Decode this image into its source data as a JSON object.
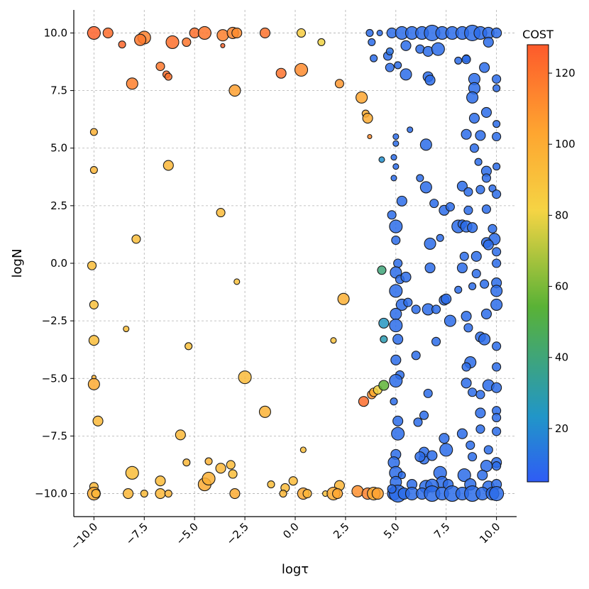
{
  "chart_data": {
    "type": "scatter",
    "title": "",
    "xlabel": "logτ",
    "ylabel": "logN",
    "xlim": [
      -11,
      11
    ],
    "ylim": [
      -11,
      11
    ],
    "x_ticks": [
      -10.0,
      -7.5,
      -5.0,
      -2.5,
      0.0,
      2.5,
      5.0,
      7.5,
      10.0
    ],
    "x_tick_labels": [
      "−10.0",
      "−7.5",
      "−5.0",
      "−2.5",
      "0.0",
      "2.5",
      "5.0",
      "7.5",
      "10.0"
    ],
    "y_ticks": [
      -10.0,
      -7.5,
      -5.0,
      -2.5,
      0.0,
      2.5,
      5.0,
      7.5,
      10.0
    ],
    "y_tick_labels": [
      "−10.0",
      "−7.5",
      "−5.0",
      "−2.5",
      "0.0",
      "2.5",
      "5.0",
      "7.5",
      "10.0"
    ],
    "grid": true,
    "colorbar": {
      "label": "COST",
      "range": [
        5,
        128
      ],
      "ticks": [
        20,
        40,
        60,
        80,
        100,
        120
      ],
      "colors": [
        "#2f5cf5",
        "#2196c8",
        "#59b236",
        "#f5d444",
        "#fea530",
        "#fd5a2b"
      ]
    },
    "points": [
      [
        -10,
        10,
        125,
        9
      ],
      [
        -9.3,
        10,
        122,
        7
      ],
      [
        -8.6,
        9.5,
        124,
        5
      ],
      [
        -7.5,
        9.8,
        115,
        9
      ],
      [
        -7.7,
        9.7,
        118,
        8
      ],
      [
        -6.1,
        9.6,
        121,
        9
      ],
      [
        -5.4,
        9.6,
        119,
        6
      ],
      [
        -5,
        10,
        121,
        7
      ],
      [
        -4.5,
        10,
        119,
        9
      ],
      [
        -3.6,
        9.9,
        116,
        8
      ],
      [
        -3.1,
        10,
        114,
        8
      ],
      [
        -2.9,
        10,
        112,
        7
      ],
      [
        -1.5,
        10,
        120,
        7
      ],
      [
        0.3,
        10,
        85,
        6
      ],
      [
        1.3,
        9.6,
        80,
        5
      ],
      [
        -3.6,
        9.45,
        125,
        3
      ],
      [
        -6.7,
        8.55,
        118,
        6
      ],
      [
        -6.4,
        8.2,
        122,
        5
      ],
      [
        -6.3,
        8.1,
        120,
        5
      ],
      [
        -8.1,
        7.8,
        116,
        8
      ],
      [
        -0.7,
        8.25,
        120,
        7
      ],
      [
        0.3,
        8.4,
        112,
        9
      ],
      [
        2.2,
        7.8,
        108,
        6
      ],
      [
        -3,
        7.5,
        105,
        8
      ],
      [
        3.3,
        7.2,
        103,
        8
      ],
      [
        3.5,
        6.5,
        100,
        5
      ],
      [
        3.6,
        6.3,
        100,
        7
      ],
      [
        3.7,
        5.5,
        112,
        3
      ],
      [
        -10,
        5.7,
        98,
        5
      ],
      [
        -10,
        4.05,
        96,
        5
      ],
      [
        -6.3,
        4.25,
        95,
        7
      ],
      [
        -3.7,
        2.2,
        93,
        6
      ],
      [
        -7.9,
        1.05,
        92,
        6
      ],
      [
        -10.1,
        -0.1,
        92,
        6
      ],
      [
        -2.9,
        -0.8,
        90,
        4
      ],
      [
        -10,
        -1.8,
        90,
        6
      ],
      [
        2.4,
        -1.55,
        98,
        8
      ],
      [
        -8.4,
        -2.85,
        92,
        4
      ],
      [
        -10,
        -3.35,
        92,
        7
      ],
      [
        1.9,
        -3.35,
        90,
        4
      ],
      [
        -5.3,
        -3.6,
        90,
        5
      ],
      [
        -10,
        -4.95,
        96,
        3
      ],
      [
        -10,
        -5.25,
        101,
        8
      ],
      [
        -2.5,
        -4.95,
        93,
        9
      ],
      [
        -9.8,
        -6.85,
        94,
        7
      ],
      [
        -1.5,
        -6.45,
        97,
        8
      ],
      [
        -5.7,
        -7.45,
        94,
        7
      ],
      [
        0.4,
        -8.1,
        92,
        4
      ],
      [
        -5.4,
        -8.65,
        95,
        5
      ],
      [
        -4.3,
        -8.6,
        97,
        5
      ],
      [
        -3.7,
        -8.9,
        95,
        7
      ],
      [
        -3.1,
        -9.15,
        92,
        6
      ],
      [
        -3.2,
        -8.75,
        93,
        6
      ],
      [
        -8.1,
        -9.1,
        92,
        9
      ],
      [
        -6.7,
        -9.45,
        93,
        7
      ],
      [
        -4.5,
        -9.6,
        101,
        9
      ],
      [
        -4.3,
        -9.35,
        98,
        9
      ],
      [
        -1.2,
        -9.6,
        92,
        5
      ],
      [
        -0.5,
        -9.75,
        93,
        6
      ],
      [
        -0.1,
        -9.45,
        93,
        6
      ],
      [
        2.2,
        -9.65,
        96,
        7
      ],
      [
        -10,
        -9.7,
        95,
        6
      ],
      [
        -10,
        -10,
        100,
        9
      ],
      [
        -9.9,
        -10,
        96,
        6
      ],
      [
        -8.3,
        -10,
        95,
        7
      ],
      [
        -7.5,
        -10,
        93,
        5
      ],
      [
        -6.7,
        -10,
        95,
        7
      ],
      [
        -6.3,
        -10,
        96,
        5
      ],
      [
        -3,
        -10,
        100,
        7
      ],
      [
        -0.6,
        -10,
        95,
        5
      ],
      [
        0.4,
        -10,
        102,
        8
      ],
      [
        0.6,
        -10,
        96,
        6
      ],
      [
        1.5,
        -10,
        90,
        4
      ],
      [
        1.9,
        -10,
        100,
        9
      ],
      [
        2.1,
        -10,
        103,
        7
      ],
      [
        3.1,
        -9.9,
        110,
        8
      ],
      [
        3.6,
        -10,
        115,
        8
      ],
      [
        3.9,
        -10,
        100,
        9
      ],
      [
        4.1,
        -10,
        105,
        8
      ],
      [
        3.4,
        -6,
        122,
        7
      ],
      [
        3.8,
        -5.7,
        110,
        6
      ],
      [
        3.9,
        -5.6,
        100,
        6
      ],
      [
        4.1,
        -5.5,
        80,
        6
      ],
      [
        4.4,
        -5.3,
        55,
        7
      ],
      [
        4.3,
        -0.3,
        40,
        6
      ],
      [
        4.4,
        -2.6,
        25,
        7
      ],
      [
        4.4,
        -3.3,
        28,
        5
      ],
      [
        4.3,
        4.5,
        22,
        4
      ],
      [
        3.7,
        10,
        10,
        5
      ],
      [
        4.2,
        10,
        10,
        4
      ],
      [
        3.8,
        9.6,
        10,
        5
      ],
      [
        3.9,
        8.9,
        10,
        5
      ],
      [
        4.6,
        9,
        10,
        6
      ],
      [
        4.7,
        9.2,
        12,
        5
      ],
      [
        4.7,
        8.5,
        10,
        6
      ],
      [
        5.5,
        8.2,
        10,
        8
      ],
      [
        6.6,
        8.1,
        10,
        7
      ],
      [
        6.7,
        7.95,
        10,
        7
      ],
      [
        5.1,
        8.6,
        10,
        5
      ],
      [
        5,
        5.5,
        10,
        4
      ],
      [
        5,
        5.2,
        10,
        4
      ],
      [
        5.7,
        5.8,
        10,
        4
      ],
      [
        6.5,
        5.15,
        10,
        8
      ],
      [
        4.9,
        4.6,
        10,
        4
      ],
      [
        5,
        4.2,
        10,
        4
      ],
      [
        4.9,
        3.7,
        10,
        4
      ],
      [
        5.3,
        2.7,
        10,
        7
      ],
      [
        4.8,
        2.1,
        10,
        6
      ],
      [
        5,
        1.6,
        10,
        9
      ],
      [
        5,
        1,
        10,
        6
      ],
      [
        5.1,
        0,
        10,
        6
      ],
      [
        5,
        -0.4,
        10,
        8
      ],
      [
        5.2,
        -0.7,
        10,
        6
      ],
      [
        5,
        -1.2,
        10,
        9
      ],
      [
        5.3,
        -1.8,
        10,
        8
      ],
      [
        5,
        -2.2,
        10,
        8
      ],
      [
        5,
        -2.7,
        10,
        9
      ],
      [
        5.1,
        -3.3,
        10,
        7
      ],
      [
        5,
        -4.2,
        10,
        7
      ],
      [
        5.2,
        -4.85,
        10,
        6
      ],
      [
        5,
        -5.1,
        10,
        9
      ],
      [
        4.9,
        -6,
        10,
        5
      ],
      [
        5.1,
        -6.85,
        10,
        7
      ],
      [
        5.1,
        -7.4,
        10,
        9
      ],
      [
        5,
        -8.3,
        10,
        7
      ],
      [
        4.9,
        -8.65,
        10,
        8
      ],
      [
        5,
        -9.1,
        10,
        9
      ],
      [
        5,
        -9.5,
        10,
        8
      ],
      [
        5.3,
        -9.2,
        10,
        5
      ],
      [
        4.9,
        -10,
        10,
        9
      ],
      [
        5.1,
        -10,
        10,
        12
      ],
      [
        4.8,
        -9.8,
        10,
        6
      ],
      [
        5.4,
        -10,
        10,
        8
      ],
      [
        5.8,
        -9.6,
        10,
        7
      ],
      [
        6,
        -2,
        10,
        6
      ],
      [
        5.6,
        -1.7,
        10,
        6
      ],
      [
        6.6,
        -2,
        10,
        8
      ],
      [
        6,
        -4,
        10,
        6
      ],
      [
        6.4,
        -6.6,
        10,
        6
      ],
      [
        6.6,
        -5.65,
        10,
        6
      ],
      [
        6.1,
        -6.9,
        10,
        6
      ],
      [
        6.4,
        -8.5,
        10,
        7
      ],
      [
        6.4,
        -8.2,
        10,
        7
      ],
      [
        6.8,
        -8.35,
        10,
        7
      ],
      [
        5.5,
        -0.6,
        10,
        7
      ],
      [
        6.2,
        -8.4,
        10,
        7
      ],
      [
        4.8,
        10,
        10,
        7
      ],
      [
        5.3,
        10,
        10,
        9
      ],
      [
        5.8,
        10,
        10,
        9
      ],
      [
        6.3,
        10,
        10,
        9
      ],
      [
        6.8,
        10,
        10,
        11
      ],
      [
        7.3,
        10,
        10,
        9
      ],
      [
        7.8,
        10,
        10,
        9
      ],
      [
        8.3,
        10,
        10,
        9
      ],
      [
        8.8,
        10,
        10,
        11
      ],
      [
        9.2,
        10,
        10,
        9
      ],
      [
        9.6,
        10,
        10,
        8
      ],
      [
        10,
        10,
        10,
        7
      ],
      [
        5.5,
        9.45,
        10,
        7
      ],
      [
        6.2,
        9.3,
        10,
        6
      ],
      [
        6.6,
        9.2,
        10,
        7
      ],
      [
        7.1,
        9.3,
        10,
        9
      ],
      [
        8.1,
        8.8,
        10,
        5
      ],
      [
        8.5,
        8.9,
        10,
        5
      ],
      [
        8.5,
        8.85,
        10,
        6
      ],
      [
        9.4,
        8.5,
        10,
        7
      ],
      [
        9.6,
        9.6,
        10,
        7
      ],
      [
        10,
        8,
        10,
        6
      ],
      [
        10,
        7.6,
        10,
        5
      ],
      [
        8.9,
        8,
        10,
        8
      ],
      [
        8.9,
        7.6,
        10,
        8
      ],
      [
        8.8,
        7.2,
        10,
        8
      ],
      [
        9.5,
        6.55,
        10,
        7
      ],
      [
        8.9,
        6.3,
        10,
        7
      ],
      [
        10,
        6.05,
        10,
        5
      ],
      [
        8.5,
        5.6,
        10,
        7
      ],
      [
        9.2,
        5.55,
        10,
        7
      ],
      [
        10,
        5.5,
        10,
        6
      ],
      [
        8.9,
        5.0,
        10,
        6
      ],
      [
        9.1,
        4.4,
        10,
        5
      ],
      [
        9.5,
        4,
        10,
        7
      ],
      [
        10,
        4.2,
        10,
        5
      ],
      [
        9.5,
        3.7,
        10,
        6
      ],
      [
        8.3,
        3.35,
        10,
        7
      ],
      [
        8.6,
        3.1,
        10,
        6
      ],
      [
        9.2,
        3.2,
        10,
        6
      ],
      [
        9.8,
        3.25,
        10,
        5
      ],
      [
        10,
        3,
        10,
        6
      ],
      [
        6.2,
        3.7,
        10,
        5
      ],
      [
        6.5,
        3.3,
        10,
        8
      ],
      [
        6.9,
        2.6,
        10,
        6
      ],
      [
        7.4,
        2.3,
        10,
        7
      ],
      [
        7.7,
        2.45,
        10,
        6
      ],
      [
        8.6,
        2.3,
        10,
        6
      ],
      [
        9.5,
        2.35,
        10,
        6
      ],
      [
        8.1,
        1.6,
        10,
        9
      ],
      [
        8.3,
        1.7,
        10,
        6
      ],
      [
        8.5,
        1.6,
        10,
        8
      ],
      [
        8.8,
        1.55,
        10,
        7
      ],
      [
        9.8,
        1.5,
        10,
        6
      ],
      [
        9.9,
        1.05,
        10,
        8
      ],
      [
        9.5,
        0.9,
        10,
        7
      ],
      [
        10,
        0.5,
        10,
        6
      ],
      [
        9.6,
        0.8,
        10,
        7
      ],
      [
        6.7,
        0.85,
        10,
        8
      ],
      [
        7.2,
        1.1,
        10,
        5
      ],
      [
        8.4,
        0.3,
        10,
        6
      ],
      [
        9,
        0.3,
        10,
        7
      ],
      [
        10,
        0,
        10,
        6
      ],
      [
        6.7,
        -0.2,
        10,
        7
      ],
      [
        8.3,
        -0.2,
        10,
        7
      ],
      [
        9,
        -0.45,
        10,
        6
      ],
      [
        10,
        -0.85,
        10,
        7
      ],
      [
        8.1,
        -1.15,
        10,
        5
      ],
      [
        8.8,
        -1,
        10,
        5
      ],
      [
        9.4,
        -0.9,
        10,
        6
      ],
      [
        10,
        -1.2,
        10,
        8
      ],
      [
        7.4,
        -1.6,
        10,
        7
      ],
      [
        7.5,
        -1.55,
        10,
        7
      ],
      [
        7,
        -2.0,
        10,
        6
      ],
      [
        8.5,
        -2.3,
        10,
        7
      ],
      [
        9.5,
        -2.2,
        10,
        7
      ],
      [
        10,
        -1.8,
        10,
        8
      ],
      [
        7.7,
        -2.5,
        10,
        8
      ],
      [
        8.6,
        -2.8,
        10,
        6
      ],
      [
        9.2,
        -3.2,
        10,
        7
      ],
      [
        9.4,
        -3.3,
        10,
        8
      ],
      [
        7,
        -3.4,
        10,
        6
      ],
      [
        10,
        -3.6,
        10,
        6
      ],
      [
        8.7,
        -4.3,
        10,
        8
      ],
      [
        8.5,
        -4.5,
        10,
        6
      ],
      [
        10,
        -4.5,
        10,
        6
      ],
      [
        8.5,
        -5.2,
        10,
        7
      ],
      [
        9.6,
        -5.3,
        10,
        8
      ],
      [
        10,
        -5.4,
        10,
        7
      ],
      [
        8.8,
        -5.6,
        10,
        6
      ],
      [
        9.2,
        -5.7,
        10,
        6
      ],
      [
        9.2,
        -6.5,
        10,
        7
      ],
      [
        10,
        -6.4,
        10,
        6
      ],
      [
        10,
        -6.7,
        10,
        6
      ],
      [
        7.4,
        -7.6,
        10,
        7
      ],
      [
        8.3,
        -7.4,
        10,
        7
      ],
      [
        9.2,
        -7.2,
        10,
        6
      ],
      [
        10,
        -7.3,
        10,
        6
      ],
      [
        7.5,
        -8.1,
        10,
        9
      ],
      [
        8.7,
        -7.9,
        10,
        6
      ],
      [
        9.6,
        -8.1,
        10,
        6
      ],
      [
        10,
        -8.65,
        10,
        7
      ],
      [
        10,
        -8.8,
        10,
        6
      ],
      [
        8.8,
        -8.4,
        10,
        6
      ],
      [
        9.5,
        -8.8,
        10,
        8
      ],
      [
        9.3,
        -9.2,
        10,
        7
      ],
      [
        7.2,
        -9.1,
        10,
        9
      ],
      [
        7.3,
        -9.5,
        10,
        8
      ],
      [
        7.6,
        -9.6,
        10,
        7
      ],
      [
        8.4,
        -9.2,
        10,
        9
      ],
      [
        8.7,
        -9.6,
        10,
        8
      ],
      [
        9.6,
        -9.7,
        10,
        8
      ],
      [
        10,
        -9.6,
        10,
        7
      ],
      [
        6.5,
        -9.7,
        10,
        9
      ],
      [
        6.8,
        -9.65,
        10,
        9
      ],
      [
        5.8,
        -10,
        10,
        9
      ],
      [
        6.3,
        -10,
        10,
        8
      ],
      [
        6.8,
        -10,
        10,
        11
      ],
      [
        7.3,
        -10,
        10,
        9
      ],
      [
        7.8,
        -10,
        10,
        11
      ],
      [
        8.3,
        -10,
        10,
        9
      ],
      [
        8.8,
        -10,
        10,
        11
      ],
      [
        9.3,
        -10,
        10,
        9
      ],
      [
        9.8,
        -10,
        10,
        9
      ],
      [
        10,
        -10,
        10,
        10
      ]
    ]
  }
}
